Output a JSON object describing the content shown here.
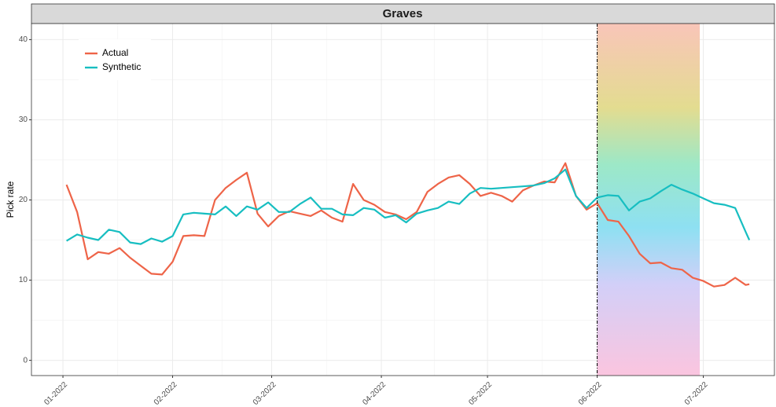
{
  "chart_data": {
    "type": "line",
    "title": "Graves",
    "ylabel": "Pick rate",
    "x": [
      1,
      4,
      7,
      10,
      13,
      16,
      19,
      22,
      25,
      28,
      31,
      34,
      37,
      40,
      43,
      46,
      49,
      52,
      55,
      58,
      61,
      64,
      67,
      70,
      73,
      76,
      79,
      82,
      85,
      88,
      91,
      94,
      97,
      100,
      103,
      106,
      109,
      112,
      115,
      118,
      121,
      124,
      127,
      130,
      133,
      136,
      139,
      142,
      145,
      148,
      151,
      154,
      157,
      160,
      163,
      166,
      169,
      172,
      175,
      178,
      181,
      184,
      187,
      190,
      193,
      194
    ],
    "series": [
      {
        "name": "Actual",
        "color": "#EE6448",
        "values": [
          21.9,
          18.5,
          12.6,
          13.5,
          13.3,
          14,
          12.8,
          11.8,
          10.8,
          10.7,
          12.3,
          15.5,
          15.6,
          15.5,
          20,
          21.5,
          22.5,
          23.4,
          18.3,
          16.7,
          18,
          18.6,
          18.3,
          18,
          18.7,
          17.8,
          17.3,
          22,
          20,
          19.4,
          18.5,
          18.2,
          17.6,
          18.5,
          21,
          22,
          22.8,
          23.1,
          22,
          20.5,
          20.9,
          20.5,
          19.8,
          21.2,
          21.8,
          22.3,
          22.2,
          24.6,
          20.5,
          18.8,
          19.6,
          17.5,
          17.3,
          15.5,
          13.3,
          12.1,
          12.2,
          11.5,
          11.3,
          10.3,
          9.9,
          9.2,
          9.4,
          10.3,
          9.4,
          9.5
        ]
      },
      {
        "name": "Synthetic",
        "color": "#17BEC1",
        "values": [
          14.9,
          15.7,
          15.3,
          15,
          16.3,
          16,
          14.7,
          14.5,
          15.2,
          14.8,
          15.5,
          18.2,
          18.4,
          18.3,
          18.2,
          19.2,
          18,
          19.2,
          18.8,
          19.7,
          18.5,
          18.5,
          19.5,
          20.3,
          18.9,
          18.9,
          18.2,
          18.1,
          19,
          18.8,
          17.8,
          18.1,
          17.2,
          18.3,
          18.7,
          19,
          19.8,
          19.5,
          20.8,
          21.5,
          21.4,
          21.5,
          21.6,
          21.7,
          21.8,
          22.1,
          22.7,
          23.8,
          20.5,
          19,
          20.3,
          20.6,
          20.5,
          18.7,
          19.8,
          20.2,
          21.1,
          21.9,
          21.3,
          20.8,
          20.2,
          19.6,
          19.4,
          19,
          16,
          15
        ]
      }
    ],
    "xlim": [
      -8.9,
      201.1
    ],
    "xticks": [
      {
        "value": 0,
        "label": "01-2022"
      },
      {
        "value": 31,
        "label": "02-2022"
      },
      {
        "value": 59,
        "label": "03-2022"
      },
      {
        "value": 90,
        "label": "04-2022"
      },
      {
        "value": 120,
        "label": "05-2022"
      },
      {
        "value": 151,
        "label": "06-2022"
      },
      {
        "value": 181,
        "label": "07-2022"
      }
    ],
    "ylim": [
      -1.9,
      42
    ],
    "yticks": [
      0,
      10,
      20,
      30,
      40
    ],
    "grid": true,
    "legend": "top-left",
    "vline": 151,
    "shade": [
      151,
      180
    ]
  }
}
